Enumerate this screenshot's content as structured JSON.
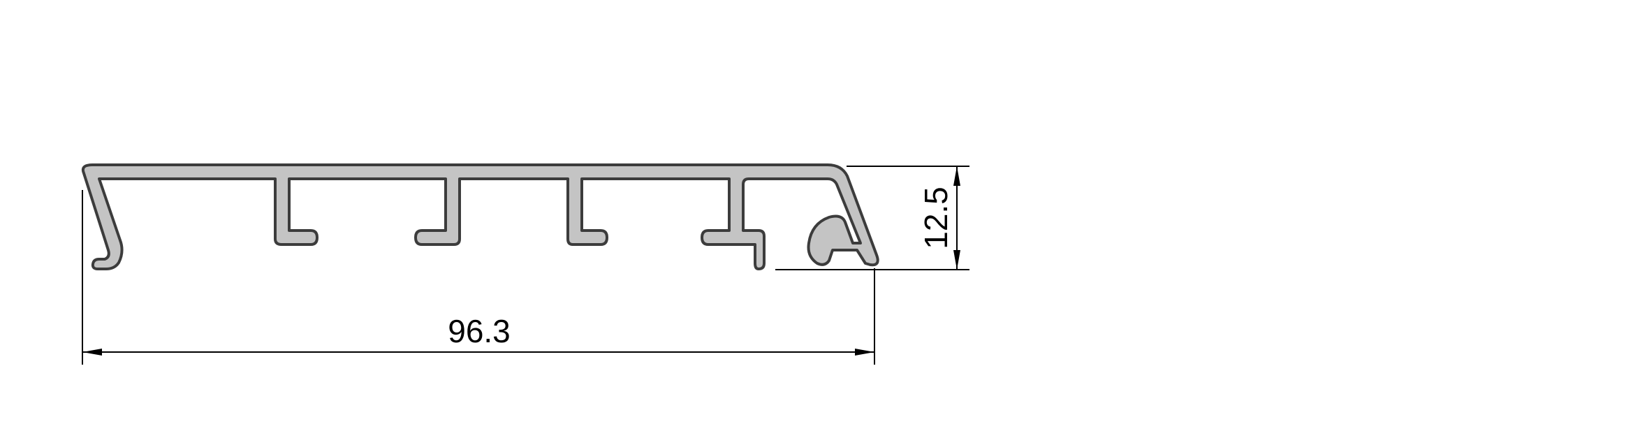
{
  "drawing": {
    "type": "aluminium extrusion profile cross-section",
    "colors": {
      "profile_fill": "#c4c4c4",
      "profile_outline": "#3c3c3c",
      "dimension_lines": "#000000"
    },
    "dimensions": {
      "width_label": "96.3",
      "height_label": "12.5"
    }
  }
}
